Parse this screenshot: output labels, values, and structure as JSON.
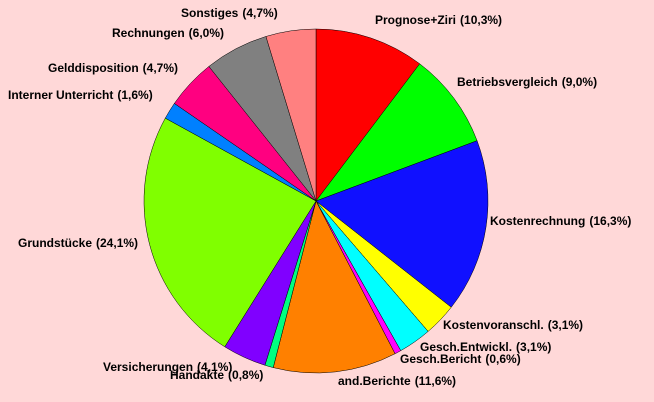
{
  "chart_data": {
    "type": "pie",
    "categories": [
      "Prognose+Ziri",
      "Betriebsvergleich",
      "Kostenrechnung",
      "Kostenvoranschl.",
      "Gesch.Entwickl.",
      "Gesch.Bericht",
      "and.Berichte",
      "Handakte",
      "Versicherungen",
      "Grundstücke",
      "Interner Unterricht",
      "Gelddisposition",
      "Rechnungen",
      "Sonstiges"
    ],
    "values": [
      10.3,
      9.0,
      16.3,
      3.1,
      3.1,
      0.6,
      11.6,
      0.8,
      4.1,
      24.1,
      1.6,
      4.7,
      6.0,
      4.7
    ],
    "value_labels": [
      "(10,3%)",
      "(9,0%)",
      "(16,3%)",
      "(3,1%)",
      "(3,1%)",
      "(0,6%)",
      "(11,6%)",
      "(0,8%)",
      "(4,1%)",
      "(24,1%)",
      "(1,6%)",
      "(4,7%)",
      "(6,0%)",
      "(4,7%)"
    ],
    "colors": [
      "#ff0000",
      "#00ff00",
      "#1010ff",
      "#ffff00",
      "#00ffff",
      "#ff00ff",
      "#ff8000",
      "#00ff80",
      "#8000ff",
      "#80ff00",
      "#0080ff",
      "#ff0080",
      "#808080",
      "#ff8080"
    ]
  }
}
